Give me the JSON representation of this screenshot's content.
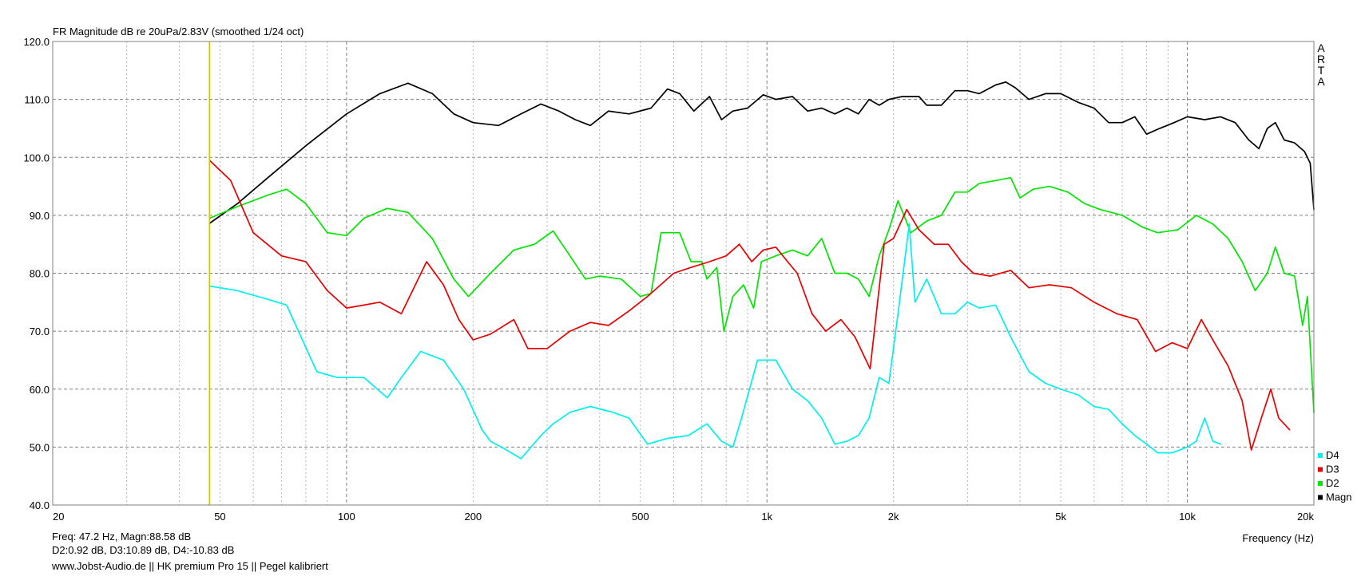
{
  "chart_data": {
    "type": "line",
    "title": "FR Magnitude dB re 20uPa/2.83V (smoothed 1/24 oct)",
    "xlabel": "Frequency (Hz)",
    "ylabel": "",
    "x_scale": "log",
    "xlim": [
      20,
      20000
    ],
    "ylim": [
      40,
      120
    ],
    "grid": true,
    "legend_position": "bottom-right",
    "brand_label": [
      "A",
      "R",
      "T",
      "A"
    ],
    "y_ticks": [
      {
        "v": 40,
        "label": "40.0"
      },
      {
        "v": 50,
        "label": "50.0"
      },
      {
        "v": 60,
        "label": "60.0"
      },
      {
        "v": 70,
        "label": "70.0"
      },
      {
        "v": 80,
        "label": "80.0"
      },
      {
        "v": 90,
        "label": "90.0"
      },
      {
        "v": 100,
        "label": "100.0"
      },
      {
        "v": 110,
        "label": "110.0"
      },
      {
        "v": 120,
        "label": "120.0"
      }
    ],
    "x_ticks": [
      {
        "v": 20,
        "label": "20"
      },
      {
        "v": 50,
        "label": "50"
      },
      {
        "v": 100,
        "label": "100"
      },
      {
        "v": 200,
        "label": "200"
      },
      {
        "v": 500,
        "label": "500"
      },
      {
        "v": 1000,
        "label": "1k"
      },
      {
        "v": 2000,
        "label": "2k"
      },
      {
        "v": 5000,
        "label": "5k"
      },
      {
        "v": 10000,
        "label": "10k"
      },
      {
        "v": 20000,
        "label": "20k"
      }
    ],
    "cursor": {
      "x": 47.2,
      "color": "#c8c800"
    },
    "series": [
      {
        "name": "Magn",
        "color": "#000000",
        "points": [
          [
            47.2,
            88.6
          ],
          [
            55,
            92
          ],
          [
            65,
            96.5
          ],
          [
            80,
            102
          ],
          [
            100,
            107.5
          ],
          [
            120,
            111
          ],
          [
            140,
            112.8
          ],
          [
            160,
            111
          ],
          [
            180,
            107.5
          ],
          [
            200,
            106
          ],
          [
            230,
            105.5
          ],
          [
            260,
            107.5
          ],
          [
            290,
            109.2
          ],
          [
            320,
            108
          ],
          [
            350,
            106.5
          ],
          [
            380,
            105.5
          ],
          [
            420,
            108
          ],
          [
            470,
            107.5
          ],
          [
            530,
            108.5
          ],
          [
            580,
            111.8
          ],
          [
            620,
            111
          ],
          [
            670,
            108
          ],
          [
            730,
            110.5
          ],
          [
            780,
            106.5
          ],
          [
            830,
            108
          ],
          [
            900,
            108.5
          ],
          [
            980,
            110.8
          ],
          [
            1050,
            110
          ],
          [
            1150,
            110.5
          ],
          [
            1250,
            108
          ],
          [
            1350,
            108.5
          ],
          [
            1450,
            107.5
          ],
          [
            1550,
            108.5
          ],
          [
            1650,
            107.5
          ],
          [
            1750,
            110
          ],
          [
            1850,
            109
          ],
          [
            1950,
            110
          ],
          [
            2100,
            110.5
          ],
          [
            2300,
            110.5
          ],
          [
            2400,
            109
          ],
          [
            2600,
            109
          ],
          [
            2800,
            111.5
          ],
          [
            3000,
            111.5
          ],
          [
            3200,
            111
          ],
          [
            3500,
            112.5
          ],
          [
            3700,
            113
          ],
          [
            3900,
            112
          ],
          [
            4200,
            110
          ],
          [
            4600,
            111
          ],
          [
            5000,
            111
          ],
          [
            5500,
            109.5
          ],
          [
            6000,
            108.5
          ],
          [
            6500,
            106
          ],
          [
            7000,
            106
          ],
          [
            7500,
            107
          ],
          [
            8000,
            104
          ],
          [
            8600,
            105
          ],
          [
            9300,
            106
          ],
          [
            10000,
            107
          ],
          [
            11000,
            106.5
          ],
          [
            12000,
            107
          ],
          [
            13000,
            106
          ],
          [
            14000,
            103
          ],
          [
            14800,
            101.5
          ],
          [
            15500,
            105
          ],
          [
            16200,
            106
          ],
          [
            17000,
            103
          ],
          [
            18000,
            102.5
          ],
          [
            19000,
            101
          ],
          [
            19600,
            99
          ],
          [
            20000,
            91
          ]
        ]
      },
      {
        "name": "D2",
        "color": "#00e600",
        "points": [
          [
            47.2,
            89.5
          ],
          [
            55,
            91.5
          ],
          [
            65,
            93.5
          ],
          [
            72,
            94.5
          ],
          [
            80,
            92
          ],
          [
            90,
            87
          ],
          [
            100,
            86.5
          ],
          [
            110,
            89.5
          ],
          [
            125,
            91.2
          ],
          [
            140,
            90.5
          ],
          [
            160,
            86
          ],
          [
            180,
            79
          ],
          [
            195,
            76
          ],
          [
            220,
            80
          ],
          [
            250,
            84
          ],
          [
            280,
            85
          ],
          [
            310,
            87.3
          ],
          [
            340,
            83
          ],
          [
            370,
            79
          ],
          [
            400,
            79.5
          ],
          [
            450,
            79
          ],
          [
            500,
            76
          ],
          [
            530,
            76.5
          ],
          [
            560,
            87
          ],
          [
            620,
            87
          ],
          [
            660,
            82
          ],
          [
            700,
            82
          ],
          [
            720,
            79
          ],
          [
            760,
            81
          ],
          [
            790,
            70
          ],
          [
            830,
            76
          ],
          [
            880,
            78
          ],
          [
            930,
            74
          ],
          [
            970,
            82
          ],
          [
            1050,
            83
          ],
          [
            1150,
            84
          ],
          [
            1250,
            83
          ],
          [
            1350,
            86
          ],
          [
            1450,
            80
          ],
          [
            1550,
            80
          ],
          [
            1650,
            79
          ],
          [
            1750,
            76
          ],
          [
            1850,
            83
          ],
          [
            1950,
            87.5
          ],
          [
            2050,
            92.5
          ],
          [
            2200,
            87
          ],
          [
            2400,
            89
          ],
          [
            2600,
            90
          ],
          [
            2800,
            94
          ],
          [
            3000,
            94
          ],
          [
            3200,
            95.5
          ],
          [
            3500,
            96
          ],
          [
            3800,
            96.5
          ],
          [
            4000,
            93
          ],
          [
            4300,
            94.5
          ],
          [
            4700,
            95
          ],
          [
            5200,
            94
          ],
          [
            5700,
            92
          ],
          [
            6200,
            91
          ],
          [
            7000,
            90
          ],
          [
            7800,
            88
          ],
          [
            8500,
            87
          ],
          [
            9500,
            87.5
          ],
          [
            10500,
            90
          ],
          [
            11500,
            88.5
          ],
          [
            12500,
            86
          ],
          [
            13500,
            82
          ],
          [
            14500,
            77
          ],
          [
            15500,
            80
          ],
          [
            16200,
            84.5
          ],
          [
            17000,
            80
          ],
          [
            18000,
            79.5
          ],
          [
            18800,
            71
          ],
          [
            19300,
            76
          ],
          [
            20000,
            56
          ]
        ]
      },
      {
        "name": "D3",
        "color": "#e60000",
        "points": [
          [
            47.2,
            99.5
          ],
          [
            53,
            96
          ],
          [
            60,
            87
          ],
          [
            70,
            83
          ],
          [
            80,
            82
          ],
          [
            90,
            77
          ],
          [
            100,
            74
          ],
          [
            110,
            74.5
          ],
          [
            120,
            75
          ],
          [
            135,
            73
          ],
          [
            155,
            82
          ],
          [
            170,
            78
          ],
          [
            185,
            72
          ],
          [
            200,
            68.5
          ],
          [
            220,
            69.5
          ],
          [
            250,
            72
          ],
          [
            270,
            67
          ],
          [
            300,
            67
          ],
          [
            340,
            70
          ],
          [
            380,
            71.5
          ],
          [
            420,
            71
          ],
          [
            470,
            73.5
          ],
          [
            520,
            76
          ],
          [
            600,
            80
          ],
          [
            660,
            81
          ],
          [
            730,
            82
          ],
          [
            800,
            83
          ],
          [
            860,
            85
          ],
          [
            920,
            82
          ],
          [
            980,
            84
          ],
          [
            1050,
            84.5
          ],
          [
            1120,
            82
          ],
          [
            1180,
            80
          ],
          [
            1280,
            73
          ],
          [
            1380,
            70
          ],
          [
            1500,
            72
          ],
          [
            1620,
            69
          ],
          [
            1760,
            63.5
          ],
          [
            1900,
            85
          ],
          [
            2000,
            86
          ],
          [
            2150,
            91
          ],
          [
            2300,
            87.5
          ],
          [
            2500,
            85
          ],
          [
            2700,
            85
          ],
          [
            2900,
            82
          ],
          [
            3100,
            80
          ],
          [
            3400,
            79.5
          ],
          [
            3800,
            80.5
          ],
          [
            4200,
            77.5
          ],
          [
            4700,
            78
          ],
          [
            5300,
            77.5
          ],
          [
            6000,
            75
          ],
          [
            6800,
            73
          ],
          [
            7600,
            72
          ],
          [
            8400,
            66.5
          ],
          [
            9200,
            68
          ],
          [
            10000,
            67
          ],
          [
            10800,
            72
          ],
          [
            11600,
            68
          ],
          [
            12500,
            64
          ],
          [
            13500,
            58
          ],
          [
            14200,
            49.5
          ],
          [
            15000,
            55
          ],
          [
            15800,
            60
          ],
          [
            16500,
            55
          ],
          [
            17500,
            53
          ]
        ]
      },
      {
        "name": "D4",
        "color": "#00f0f0",
        "points": [
          [
            47.2,
            77.8
          ],
          [
            55,
            77
          ],
          [
            65,
            75.5
          ],
          [
            72,
            74.5
          ],
          [
            85,
            63
          ],
          [
            95,
            62
          ],
          [
            110,
            62
          ],
          [
            125,
            58.5
          ],
          [
            135,
            62
          ],
          [
            150,
            66.5
          ],
          [
            170,
            65
          ],
          [
            190,
            60
          ],
          [
            210,
            53
          ],
          [
            220,
            51
          ],
          [
            240,
            49.5
          ],
          [
            260,
            48
          ],
          [
            290,
            52
          ],
          [
            310,
            54
          ],
          [
            340,
            56
          ],
          [
            380,
            57
          ],
          [
            430,
            56
          ],
          [
            470,
            55
          ],
          [
            520,
            50.5
          ],
          [
            580,
            51.5
          ],
          [
            650,
            52
          ],
          [
            720,
            54
          ],
          [
            780,
            51
          ],
          [
            830,
            50
          ],
          [
            870,
            55
          ],
          [
            950,
            65
          ],
          [
            1050,
            65
          ],
          [
            1150,
            60
          ],
          [
            1250,
            58
          ],
          [
            1350,
            55
          ],
          [
            1450,
            50.5
          ],
          [
            1550,
            51
          ],
          [
            1650,
            52
          ],
          [
            1750,
            55
          ],
          [
            1850,
            62
          ],
          [
            1950,
            61
          ],
          [
            2050,
            73
          ],
          [
            2180,
            88.5
          ],
          [
            2250,
            75
          ],
          [
            2400,
            79
          ],
          [
            2600,
            73
          ],
          [
            2800,
            73
          ],
          [
            3000,
            75
          ],
          [
            3200,
            74
          ],
          [
            3500,
            74.5
          ],
          [
            3800,
            69
          ],
          [
            4200,
            63
          ],
          [
            4600,
            61
          ],
          [
            5000,
            60
          ],
          [
            5500,
            59
          ],
          [
            6000,
            57
          ],
          [
            6500,
            56.5
          ],
          [
            7000,
            54
          ],
          [
            7500,
            52
          ],
          [
            8000,
            50.5
          ],
          [
            8500,
            49
          ],
          [
            9200,
            49
          ],
          [
            10000,
            50
          ],
          [
            10500,
            51
          ],
          [
            11000,
            55
          ],
          [
            11500,
            51
          ],
          [
            12000,
            50.5
          ]
        ]
      }
    ],
    "legend": [
      "D4",
      "D3",
      "D2",
      "Magn"
    ]
  },
  "footer": {
    "line1": "Freq: 47.2 Hz, Magn:88.58 dB",
    "line2": "D2:0.92 dB, D3:10.89 dB, D4:-10.83 dB",
    "line3": "www.Jobst-Audio.de  ||  HK premium Pro 15  ||  Pegel kalibriert"
  }
}
